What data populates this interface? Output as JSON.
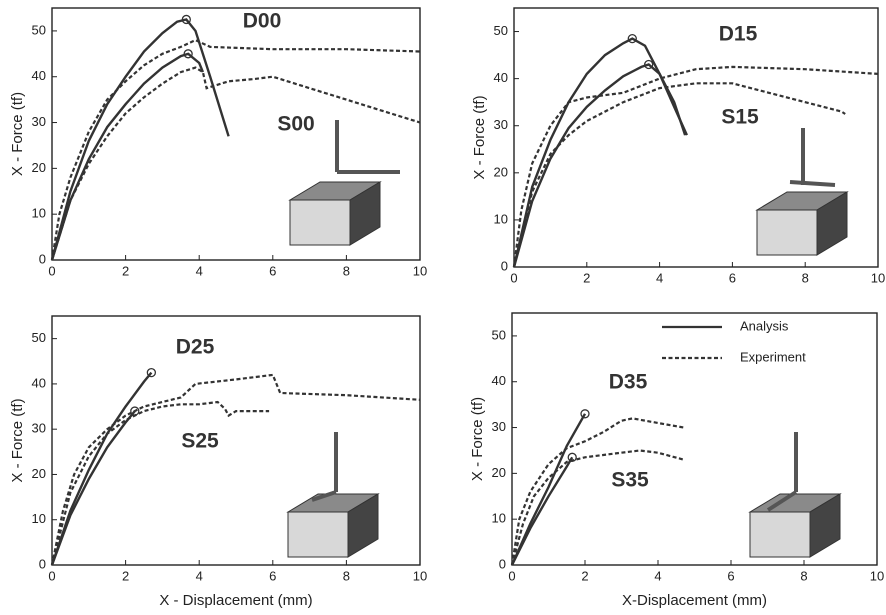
{
  "chart_data": [
    {
      "type": "line",
      "y_label": "X - Force (tf)",
      "annotations": [
        "D00",
        "S00"
      ],
      "xlim": [
        0,
        10
      ],
      "xticks": [
        0,
        2,
        4,
        6,
        8,
        10
      ],
      "ylim": [
        0,
        55
      ],
      "yticks": [
        0,
        10,
        20,
        30,
        40,
        50
      ],
      "grid": false,
      "series": [
        {
          "dash": false,
          "color": "#333333",
          "x": [
            0,
            0.5,
            1,
            1.5,
            2,
            2.5,
            3,
            3.4,
            3.65,
            3.9,
            4.3,
            4.8
          ],
          "values": [
            0,
            15,
            26,
            34,
            40,
            45.5,
            49.5,
            52,
            52.5,
            50,
            40,
            27
          ]
        },
        {
          "dash": false,
          "color": "#333333",
          "x": [
            0,
            0.5,
            1,
            1.5,
            2,
            2.5,
            3,
            3.5,
            3.7,
            4,
            4.1
          ],
          "values": [
            0,
            13,
            22,
            29,
            34,
            38.5,
            42,
            44.5,
            45,
            43,
            41
          ]
        },
        {
          "dash": true,
          "color": "#333333",
          "x": [
            0,
            0.2,
            0.5,
            1,
            1.5,
            2,
            2.5,
            3,
            3.5,
            3.9,
            4.3,
            6,
            8,
            10
          ],
          "values": [
            0,
            10,
            18,
            28,
            35,
            39,
            42.5,
            45,
            46.5,
            48,
            46.5,
            46,
            46,
            45.5
          ]
        },
        {
          "dash": true,
          "color": "#333333",
          "x": [
            0,
            0.5,
            1,
            1.5,
            2,
            2.5,
            3,
            3.5,
            3.9,
            4.1,
            4.2,
            4.8,
            5.5,
            6,
            7,
            8,
            9,
            10
          ],
          "values": [
            0,
            13,
            21,
            27,
            32,
            35.5,
            38.5,
            41,
            42,
            41,
            37.5,
            39,
            39.5,
            40,
            37.5,
            35,
            32.5,
            30
          ]
        }
      ],
      "markers": {
        "x": [
          3.65,
          3.7
        ],
        "values": [
          52.5,
          45
        ]
      }
    },
    {
      "type": "line",
      "y_label": "X - Force (tf)",
      "annotations": [
        "D15",
        "S15"
      ],
      "xlim": [
        0,
        10
      ],
      "xticks": [
        0,
        2,
        4,
        6,
        8,
        10
      ],
      "ylim": [
        0,
        55
      ],
      "yticks": [
        0,
        10,
        20,
        30,
        40,
        50
      ],
      "grid": false,
      "series": [
        {
          "dash": false,
          "color": "#333333",
          "x": [
            0,
            0.5,
            1,
            1.5,
            2,
            2.5,
            3,
            3.25,
            3.6,
            4,
            4.4,
            4.75
          ],
          "values": [
            0,
            17,
            27,
            35,
            41,
            45,
            47.5,
            48.5,
            47,
            41,
            34,
            28
          ]
        },
        {
          "dash": false,
          "color": "#333333",
          "x": [
            0,
            0.5,
            1,
            1.5,
            2,
            2.5,
            3,
            3.5,
            3.7,
            4,
            4.4,
            4.7
          ],
          "values": [
            0,
            14,
            23,
            29.5,
            34,
            37.5,
            40.5,
            42.5,
            43,
            41,
            35,
            28
          ]
        },
        {
          "dash": true,
          "color": "#333333",
          "x": [
            0,
            0.2,
            0.5,
            1,
            1.5,
            2,
            3,
            4,
            5,
            6,
            8,
            10
          ],
          "values": [
            0,
            12,
            22,
            30,
            35,
            36,
            37,
            40,
            42,
            42.5,
            42,
            41
          ]
        },
        {
          "dash": true,
          "color": "#333333",
          "x": [
            0,
            0.5,
            1,
            1.5,
            2,
            3,
            4,
            5,
            6,
            7,
            8,
            9,
            9.1
          ],
          "values": [
            0,
            16,
            24,
            28,
            31,
            35,
            38,
            39,
            39,
            37,
            35,
            33,
            32.5
          ]
        }
      ],
      "markers": {
        "x": [
          3.25,
          3.7
        ],
        "values": [
          48.5,
          43
        ]
      }
    },
    {
      "type": "line",
      "x_label": "X - Displacement (mm)",
      "y_label": "X - Force (tf)",
      "annotations": [
        "D25",
        "S25"
      ],
      "xlim": [
        0,
        10
      ],
      "xticks": [
        0,
        2,
        4,
        6,
        8,
        10
      ],
      "ylim": [
        0,
        55
      ],
      "yticks": [
        0,
        10,
        20,
        30,
        40,
        50
      ],
      "grid": false,
      "series": [
        {
          "dash": false,
          "color": "#333333",
          "x": [
            0,
            0.5,
            1,
            1.5,
            2,
            2.5,
            2.7
          ],
          "values": [
            0,
            12,
            21,
            29,
            35,
            40.5,
            42.5
          ]
        },
        {
          "dash": false,
          "color": "#333333",
          "x": [
            0,
            0.5,
            1,
            1.5,
            2,
            2.25
          ],
          "values": [
            0,
            11,
            19,
            26,
            31.5,
            34
          ]
        },
        {
          "dash": true,
          "color": "#333333",
          "x": [
            0,
            0.3,
            0.6,
            1,
            1.5,
            2,
            2.5,
            3,
            3.5,
            3.9,
            5,
            6,
            6.2,
            8,
            10
          ],
          "values": [
            0,
            12,
            20,
            26,
            30,
            33,
            35,
            36,
            37,
            40,
            41,
            42,
            38,
            37.5,
            36.5
          ]
        },
        {
          "dash": true,
          "color": "#333333",
          "x": [
            0,
            0.5,
            1,
            1.5,
            2,
            2.5,
            3,
            3.5,
            4,
            4.5,
            4.7,
            4.8,
            5,
            5.5,
            5.9
          ],
          "values": [
            0,
            16,
            24,
            29,
            32,
            34,
            35,
            35.5,
            35.5,
            36,
            34.5,
            33,
            34,
            34,
            34
          ]
        }
      ],
      "markers": {
        "x": [
          2.7,
          2.25
        ],
        "values": [
          42.5,
          34
        ]
      }
    },
    {
      "type": "line",
      "x_label": "X-Displacement (mm)",
      "y_label": "X - Force (tf)",
      "annotations": [
        "D35",
        "S35"
      ],
      "xlim": [
        0,
        10
      ],
      "xticks": [
        0,
        2,
        4,
        6,
        8,
        10
      ],
      "ylim": [
        0,
        55
      ],
      "yticks": [
        0,
        10,
        20,
        30,
        40,
        50
      ],
      "grid": false,
      "legend": [
        {
          "name": "Analysis",
          "dash": false
        },
        {
          "name": "Experiment",
          "dash": true
        }
      ],
      "series": [
        {
          "dash": false,
          "color": "#333333",
          "x": [
            0,
            0.5,
            1,
            1.5,
            2
          ],
          "values": [
            0,
            9,
            17,
            26,
            33
          ]
        },
        {
          "dash": false,
          "color": "#333333",
          "x": [
            0,
            0.5,
            1,
            1.5,
            1.65
          ],
          "values": [
            0,
            8,
            15,
            21.5,
            23.5
          ]
        },
        {
          "dash": true,
          "color": "#333333",
          "x": [
            0,
            0.2,
            0.5,
            1,
            1.5,
            2,
            2.5,
            3,
            3.3,
            4,
            4.7
          ],
          "values": [
            0,
            10,
            16,
            22,
            25.5,
            27,
            29,
            31.5,
            32,
            31,
            30
          ]
        },
        {
          "dash": true,
          "color": "#333333",
          "x": [
            0,
            0.3,
            0.6,
            1,
            1.5,
            2,
            2.5,
            3,
            3.5,
            4,
            4.7
          ],
          "values": [
            0,
            9,
            15,
            19,
            22.5,
            23.5,
            24,
            24.5,
            25,
            24.5,
            23
          ]
        }
      ],
      "markers": {
        "x": [
          2,
          1.65
        ],
        "values": [
          33,
          23.5
        ]
      }
    }
  ]
}
